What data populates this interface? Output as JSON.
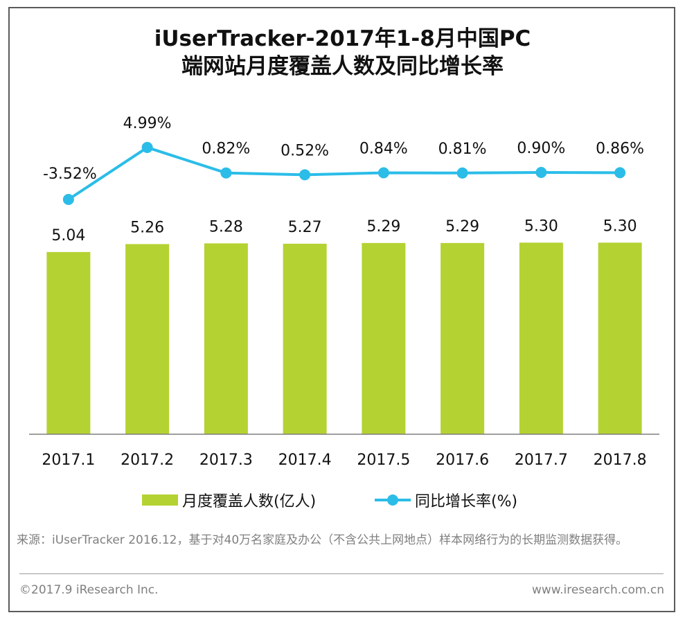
{
  "title": {
    "line1": "iUserTracker-2017年1-8月中国PC",
    "line2": "端网站月度覆盖人数及同比增长率"
  },
  "legend": {
    "bar_label": "月度覆盖人数(亿人)",
    "line_label": "同比增长率(%)"
  },
  "source": "来源：iUserTracker 2016.12，基于对40万名家庭及办公（不含公共上网地点）样本网络行为的长期监测数据获得。",
  "footer": {
    "copyright": "©2017.9  iResearch Inc.",
    "website": "www.iresearch.com.cn"
  },
  "colors": {
    "bar": "#b4d232",
    "line": "#2bbde8"
  },
  "chart_data": {
    "type": "bar",
    "title": "iUserTracker-2017年1-8月中国PC端网站月度覆盖人数及同比增长率",
    "categories": [
      "2017.1",
      "2017.2",
      "2017.3",
      "2017.4",
      "2017.5",
      "2017.6",
      "2017.7",
      "2017.8"
    ],
    "series": [
      {
        "name": "月度覆盖人数(亿人)",
        "type": "bar",
        "values": [
          5.04,
          5.26,
          5.28,
          5.27,
          5.29,
          5.29,
          5.3,
          5.3
        ],
        "labels": [
          "5.04",
          "5.26",
          "5.28",
          "5.27",
          "5.29",
          "5.29",
          "5.30",
          "5.30"
        ]
      },
      {
        "name": "同比增长率(%)",
        "type": "line",
        "values": [
          -3.52,
          4.99,
          0.82,
          0.52,
          0.84,
          0.81,
          0.9,
          0.86
        ],
        "labels": [
          "-3.52%",
          "4.99%",
          "0.82%",
          "0.52%",
          "0.84%",
          "0.81%",
          "0.90%",
          "0.86%"
        ]
      }
    ],
    "bar_ylim": [
      0,
      5.5
    ],
    "line_ylim": [
      -4.4,
      45
    ],
    "xlabel": "",
    "ylabel": ""
  }
}
